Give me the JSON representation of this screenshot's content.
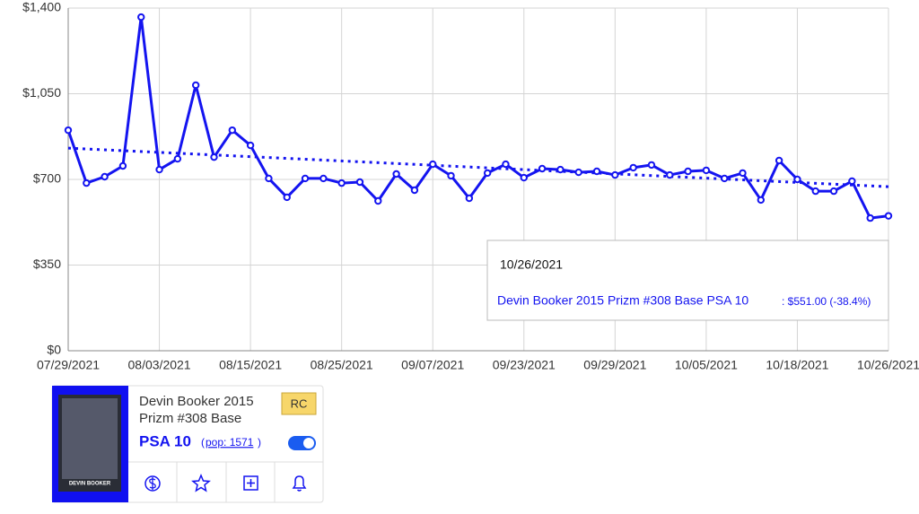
{
  "chart_data": {
    "type": "line",
    "categories": [
      "07/29/2021",
      null,
      null,
      null,
      null,
      "08/03/2021",
      null,
      null,
      null,
      null,
      "08/15/2021",
      null,
      null,
      null,
      null,
      "08/25/2021",
      null,
      null,
      null,
      null,
      "09/07/2021",
      null,
      null,
      null,
      null,
      "09/23/2021",
      null,
      null,
      null,
      null,
      "09/29/2021",
      null,
      null,
      null,
      null,
      "10/05/2021",
      null,
      null,
      null,
      null,
      "10/18/2021",
      null,
      null,
      null,
      null,
      "10/26/2021"
    ],
    "series": [
      {
        "color": "#1414f0",
        "values": [
          901,
          685,
          711,
          755,
          1363,
          740,
          784,
          1085,
          791,
          901,
          839,
          704,
          627,
          704,
          704,
          685,
          689,
          612,
          722,
          656,
          762,
          715,
          623,
          726,
          762,
          707,
          744,
          740,
          729,
          733,
          718,
          748,
          759,
          718,
          733,
          737,
          704,
          726,
          616,
          777,
          700,
          652,
          652,
          693,
          542,
          551
        ]
      }
    ],
    "trend": {
      "values": [
        828,
        670
      ],
      "color": "#1414f0"
    },
    "ylim": [
      0,
      1400
    ],
    "yticks": [
      {
        "value": 0,
        "label": "$0"
      },
      {
        "value": 350,
        "label": "$350"
      },
      {
        "value": 700,
        "label": "$700"
      },
      {
        "value": 1050,
        "label": "$1,050"
      },
      {
        "value": 1400,
        "label": "$1,400"
      }
    ],
    "grid": true
  },
  "tooltip": {
    "date": "10/26/2021",
    "name": "Devin Booker 2015 Prizm #308 Base PSA 10",
    "detail": ": $551.00 (-38.4%)"
  },
  "card": {
    "title_lines": [
      "Devin Booker 2015",
      "Prizm #308 Base"
    ],
    "badge": "RC",
    "grade": "PSA 10",
    "pop_open": "(",
    "pop": "pop: 1571",
    "pop_close": ")",
    "image_name": "DEVIN BOOKER"
  }
}
